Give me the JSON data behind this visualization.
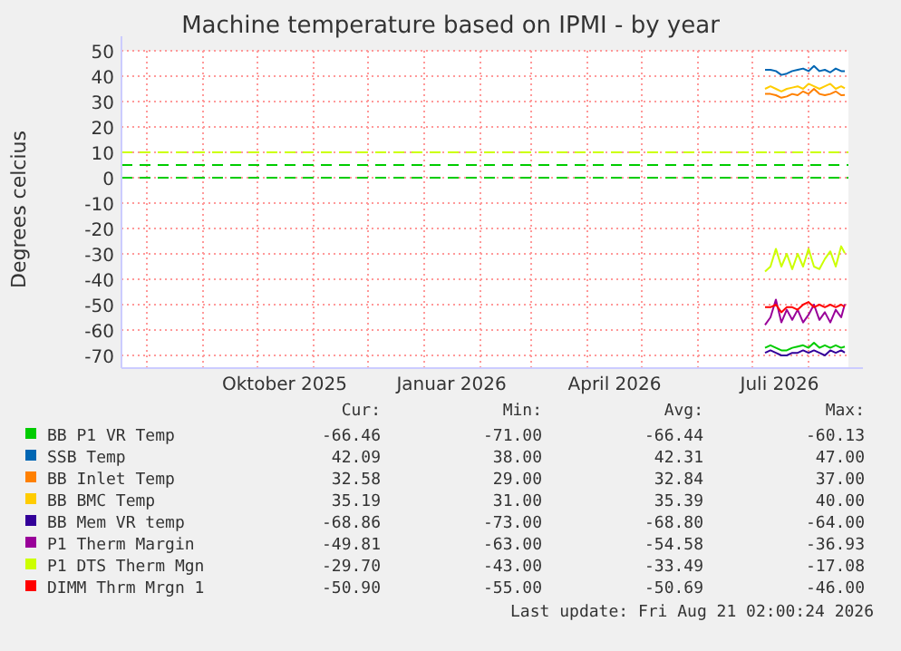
{
  "chart_data": {
    "type": "line",
    "title": "Machine temperature based on IPMI - by year",
    "ylabel": "Degrees celcius",
    "x": [
      "2026-07-08",
      "2026-07-11",
      "2026-07-14",
      "2026-07-17",
      "2026-07-20",
      "2026-07-23",
      "2026-07-26",
      "2026-07-29",
      "2026-08-01",
      "2026-08-04",
      "2026-08-07",
      "2026-08-10",
      "2026-08-13",
      "2026-08-16",
      "2026-08-19",
      "2026-08-21"
    ],
    "xlim": [
      "2025-07-18",
      "2026-08-23"
    ],
    "xticks": [
      {
        "value": "2025-08-01",
        "label": null
      },
      {
        "value": "2025-09-01",
        "label": null
      },
      {
        "value": "2025-10-01",
        "label": null
      },
      {
        "value": "2025-10-16",
        "label": "Oktober 2025"
      },
      {
        "value": "2025-11-01",
        "label": null
      },
      {
        "value": "2025-12-01",
        "label": null
      },
      {
        "value": "2026-01-01",
        "label": null
      },
      {
        "value": "2026-01-16",
        "label": "Januar 2026"
      },
      {
        "value": "2026-02-01",
        "label": null
      },
      {
        "value": "2026-03-01",
        "label": null
      },
      {
        "value": "2026-04-01",
        "label": null
      },
      {
        "value": "2026-04-16",
        "label": "April 2026"
      },
      {
        "value": "2026-05-01",
        "label": null
      },
      {
        "value": "2026-06-01",
        "label": null
      },
      {
        "value": "2026-07-01",
        "label": null
      },
      {
        "value": "2026-07-16",
        "label": "Juli 2026"
      },
      {
        "value": "2026-08-01",
        "label": null
      }
    ],
    "ylim": [
      -75,
      50
    ],
    "yticks": [
      -70,
      -60,
      -50,
      -40,
      -30,
      -20,
      -10,
      0,
      10,
      20,
      30,
      40,
      50
    ],
    "grid": true,
    "legend": "bottom",
    "marker": "none",
    "line_style": "solid",
    "series": [
      {
        "name": "BB P1 VR Temp",
        "color": "#00cc00",
        "values": [
          -67,
          -66,
          -67,
          -68,
          -68,
          -67,
          -66.5,
          -66,
          -67,
          -65,
          -67,
          -66,
          -67,
          -66,
          -67,
          -66.5
        ]
      },
      {
        "name": "SSB Temp",
        "color": "#0066b3",
        "values": [
          42.5,
          42.5,
          42,
          40.5,
          41,
          42,
          42.5,
          43,
          42,
          44,
          42,
          42.5,
          41.5,
          43,
          42,
          42
        ]
      },
      {
        "name": "BB Inlet Temp",
        "color": "#ff8000",
        "values": [
          33,
          33,
          32.5,
          31.5,
          32,
          33,
          32.5,
          34,
          33,
          35,
          33,
          32.5,
          33,
          34,
          32.5,
          32.6
        ]
      },
      {
        "name": "BB BMC Temp",
        "color": "#ffcc00",
        "values": [
          35,
          36,
          35,
          34,
          35,
          35.5,
          36,
          35,
          37,
          36,
          35,
          36,
          37,
          35,
          36,
          35.2
        ]
      },
      {
        "name": "BB Mem VR temp",
        "color": "#330099",
        "values": [
          -69,
          -68,
          -69,
          -70,
          -70,
          -69,
          -69,
          -68,
          -69,
          -68,
          -69,
          -70,
          -68,
          -69,
          -68,
          -68.9
        ]
      },
      {
        "name": "P1 Therm Margin",
        "color": "#990099",
        "values": [
          -58,
          -55,
          -48,
          -57,
          -52,
          -56,
          -52,
          -57,
          -54,
          -50,
          -56,
          -53,
          -57,
          -52,
          -55,
          -49.8
        ]
      },
      {
        "name": "P1 DTS Therm Mgn",
        "color": "#ccff00",
        "values": [
          -37,
          -35,
          -28,
          -35,
          -30,
          -36,
          -30,
          -35,
          -28,
          -35,
          -36,
          -32,
          -29,
          -35,
          -27,
          -29.7
        ]
      },
      {
        "name": "DIMM Thrm Mrgn 1",
        "color": "#ff0000",
        "values": [
          -51,
          -51,
          -50,
          -53,
          -51,
          -51,
          -52,
          -50,
          -49,
          -51,
          -50,
          -51,
          -50,
          -51,
          -50,
          -50.9
        ]
      }
    ],
    "ref_lines": [
      {
        "axis": "y",
        "value": 10,
        "color": "#ccff00",
        "line_style": "dashed"
      },
      {
        "axis": "y",
        "value": 5,
        "color": "#00cc00",
        "line_style": "dashed"
      },
      {
        "axis": "y",
        "value": 0,
        "color": "#00cc00",
        "line_style": "dashed"
      }
    ],
    "annotations": [
      "Cur:",
      "Min:",
      "Avg:",
      "Max:",
      "-66.46",
      "-71.00",
      "-66.44",
      "-60.13",
      "42.09",
      "38.00",
      "42.31",
      "47.00",
      "32.58",
      "29.00",
      "32.84",
      "37.00",
      "35.19",
      "31.00",
      "35.39",
      "40.00",
      "-68.86",
      "-73.00",
      "-68.80",
      "-64.00",
      "-49.81",
      "-63.00",
      "-54.58",
      "-36.93",
      "-29.70",
      "-43.00",
      "-33.49",
      "-17.08",
      "-50.90",
      "-55.00",
      "-50.69",
      "-46.00",
      "Last update: Fri Aug 21 02:00:24 2026"
    ]
  }
}
